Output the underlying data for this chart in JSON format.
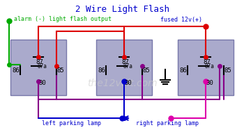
{
  "title": "2 Wire Light Flash",
  "title_color": "#0000cc",
  "title_fontsize": 9,
  "bg_color": "#ffffff",
  "relay_color": "#aaaacc",
  "relay_border": "#7777aa",
  "watermark": "the12volt.com",
  "watermark_color": "#cccccc",
  "alarm_label": "alarm (-) light flash output",
  "alarm_color": "#00aa00",
  "fused_label": "fused 12v(+)",
  "fused_color": "#0000cc",
  "left_lamp_label": "left parking lamp",
  "right_lamp_label": "right parking lamp",
  "lamp_label_color": "#0000cc"
}
